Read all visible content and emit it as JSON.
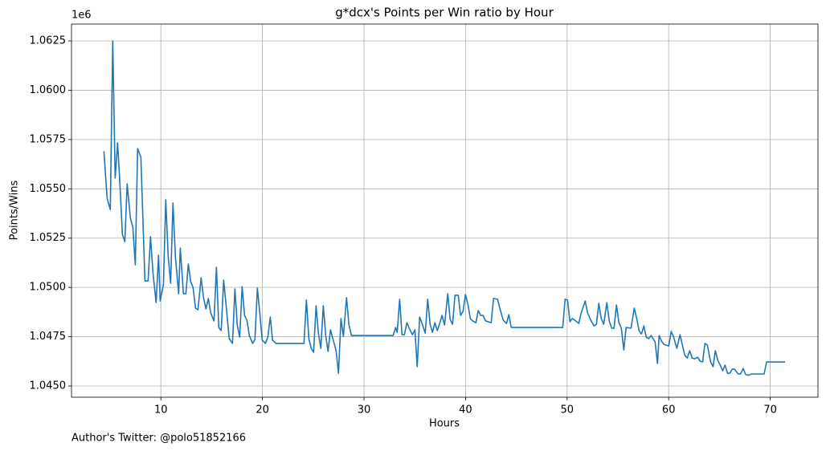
{
  "chart_data": {
    "type": "line",
    "title": "g*dcx's Points per Win ratio by Hour",
    "x_label": "Hours",
    "y_label": "Points/Wins",
    "y_offset_label": "1e6",
    "annotation": "Author's Twitter: @polo51852166",
    "grid": true,
    "xlim": [
      1.2,
      74.7
    ],
    "xticks": [
      10,
      20,
      30,
      40,
      50,
      60,
      70
    ],
    "ylim": [
      1044430,
      1063355
    ],
    "yticks": [
      {
        "value": 1045000,
        "label": "1.0450"
      },
      {
        "value": 1047500,
        "label": "1.0475"
      },
      {
        "value": 1050000,
        "label": "1.0500"
      },
      {
        "value": 1052500,
        "label": "1.0525"
      },
      {
        "value": 1055000,
        "label": "1.0550"
      },
      {
        "value": 1057500,
        "label": "1.0575"
      },
      {
        "value": 1060000,
        "label": "1.0600"
      },
      {
        "value": 1062500,
        "label": "1.0625"
      }
    ],
    "series": [
      {
        "color": "#1f77b4",
        "x": [
          4.39,
          4.71,
          5.02,
          5.26,
          5.5,
          5.74,
          5.97,
          6.21,
          6.45,
          6.68,
          7.0,
          7.24,
          7.48,
          7.71,
          8.03,
          8.43,
          8.74,
          8.98,
          9.22,
          9.53,
          9.77,
          9.93,
          10.25,
          10.48,
          10.72,
          10.96,
          11.19,
          11.43,
          11.75,
          11.91,
          12.22,
          12.46,
          12.7,
          12.94,
          13.17,
          13.41,
          13.65,
          13.96,
          14.2,
          14.44,
          14.67,
          14.91,
          15.23,
          15.47,
          15.7,
          15.94,
          16.18,
          16.42,
          16.73,
          17.05,
          17.29,
          17.52,
          17.76,
          18.0,
          18.24,
          18.47,
          18.71,
          19.03,
          19.26,
          19.5,
          19.74,
          19.98,
          20.29,
          20.53,
          20.77,
          21.0,
          21.32,
          24.09,
          24.33,
          24.57,
          24.8,
          25.04,
          25.28,
          25.51,
          25.75,
          25.99,
          26.23,
          26.46,
          26.7,
          27.02,
          27.25,
          27.49,
          27.73,
          27.97,
          28.28,
          28.52,
          28.76,
          32.87,
          33.11,
          33.27,
          33.51,
          33.74,
          33.98,
          34.22,
          34.45,
          34.77,
          35.01,
          35.24,
          35.48,
          35.72,
          36.03,
          36.27,
          36.51,
          36.74,
          36.98,
          37.22,
          37.45,
          37.69,
          37.93,
          38.25,
          38.48,
          38.72,
          38.96,
          39.28,
          39.51,
          39.75,
          39.99,
          40.23,
          40.47,
          40.7,
          41.02,
          41.25,
          41.49,
          41.73,
          41.97,
          42.52,
          42.76,
          43.15,
          43.39,
          43.71,
          44.03,
          44.26,
          44.5,
          49.57,
          49.8,
          50.04,
          50.28,
          50.51,
          50.75,
          51.15,
          51.38,
          51.78,
          52.02,
          52.33,
          52.65,
          52.89,
          53.12,
          53.36,
          53.6,
          53.91,
          54.15,
          54.39,
          54.62,
          54.86,
          55.1,
          55.34,
          55.58,
          55.81,
          56.29,
          56.61,
          56.84,
          57.08,
          57.32,
          57.56,
          57.79,
          58.03,
          58.27,
          58.66,
          58.9,
          59.06,
          59.3,
          59.53,
          59.77,
          60.01,
          60.25,
          60.49,
          60.8,
          61.12,
          61.35,
          61.59,
          61.83,
          62.07,
          62.31,
          62.54,
          62.86,
          63.1,
          63.34,
          63.57,
          63.81,
          64.13,
          64.37,
          64.6,
          64.84,
          65.08,
          65.32,
          65.55,
          65.79,
          66.03,
          66.25,
          66.49,
          66.84,
          67.08,
          67.34,
          67.58,
          67.89,
          68.13,
          69.4,
          69.64,
          71.46
        ],
        "values": [
          1056900,
          1054500,
          1053950,
          1062500,
          1055540,
          1057330,
          1055210,
          1052690,
          1052320,
          1055250,
          1053500,
          1053050,
          1051140,
          1057040,
          1056600,
          1050330,
          1050330,
          1052570,
          1050740,
          1049230,
          1051630,
          1049310,
          1050130,
          1054440,
          1051550,
          1050210,
          1054280,
          1051550,
          1049680,
          1052000,
          1049680,
          1049680,
          1051190,
          1050290,
          1050000,
          1048950,
          1048870,
          1050490,
          1049480,
          1048910,
          1049440,
          1048700,
          1048300,
          1051020,
          1047970,
          1047810,
          1050370,
          1049110,
          1047400,
          1047160,
          1049920,
          1048090,
          1047480,
          1050040,
          1048580,
          1048340,
          1047560,
          1047160,
          1047360,
          1049960,
          1048700,
          1047320,
          1047160,
          1047480,
          1048500,
          1047320,
          1047160,
          1047160,
          1049360,
          1047400,
          1046910,
          1046710,
          1049070,
          1047680,
          1046910,
          1049070,
          1047560,
          1046750,
          1047850,
          1047240,
          1046790,
          1045650,
          1048420,
          1047520,
          1049480,
          1048090,
          1047560,
          1047560,
          1047970,
          1047720,
          1049400,
          1047600,
          1047600,
          1048210,
          1047930,
          1047600,
          1047850,
          1045980,
          1048500,
          1048170,
          1047680,
          1049400,
          1048130,
          1047720,
          1048210,
          1047810,
          1048170,
          1048580,
          1048090,
          1049680,
          1048380,
          1048130,
          1049600,
          1049600,
          1048580,
          1048780,
          1049640,
          1049150,
          1048420,
          1048300,
          1048210,
          1048830,
          1048580,
          1048580,
          1048300,
          1048210,
          1049440,
          1049400,
          1048910,
          1048340,
          1048170,
          1048620,
          1047970,
          1047970,
          1049400,
          1049360,
          1048260,
          1048420,
          1048340,
          1048170,
          1048700,
          1049310,
          1048700,
          1048340,
          1048050,
          1048130,
          1049190,
          1048420,
          1048130,
          1049230,
          1048300,
          1047930,
          1047930,
          1049110,
          1048210,
          1047930,
          1046830,
          1047970,
          1047930,
          1048950,
          1048460,
          1047810,
          1047640,
          1048050,
          1047480,
          1047400,
          1047560,
          1047240,
          1046140,
          1047560,
          1047270,
          1047110,
          1047070,
          1047030,
          1047770,
          1047480,
          1046910,
          1047600,
          1047070,
          1046550,
          1046420,
          1046790,
          1046420,
          1046380,
          1046460,
          1046260,
          1046220,
          1047160,
          1047070,
          1046220,
          1045980,
          1046790,
          1046300,
          1046060,
          1045770,
          1046060,
          1045650,
          1045650,
          1045850,
          1045850,
          1045610,
          1045610,
          1045890,
          1045580,
          1045540,
          1045610,
          1045610,
          1046220,
          1046220
        ]
      }
    ]
  }
}
